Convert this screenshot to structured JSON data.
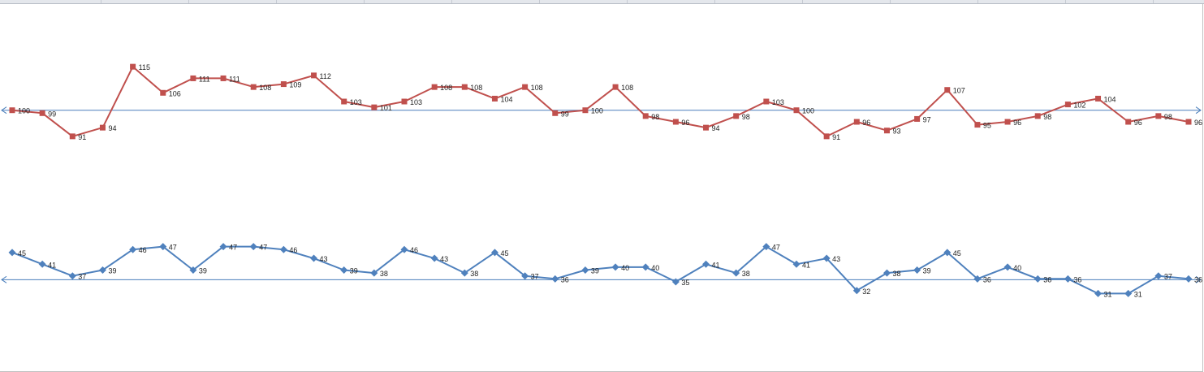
{
  "chart_data": {
    "type": "line",
    "title": "",
    "xlabel": "",
    "ylabel": "",
    "legend": "none",
    "grid": false,
    "axis_color": "#4a7ebb",
    "x": [
      1,
      2,
      3,
      4,
      5,
      6,
      7,
      8,
      9,
      10,
      11,
      12,
      13,
      14,
      15,
      16,
      17,
      18,
      19,
      20,
      21,
      22,
      23,
      24,
      25,
      26,
      27,
      28,
      29,
      30,
      31,
      32,
      33,
      34,
      35,
      36,
      37,
      38,
      39,
      40
    ],
    "series": [
      {
        "color": "#c0504d",
        "marker": "square",
        "labels": [
          "100",
          "99",
          "91",
          "94",
          "115",
          "106",
          "111",
          "111",
          "108",
          "109",
          "112",
          "103",
          "101",
          "103",
          "108",
          "108",
          "104",
          "108",
          "99",
          "100",
          "108",
          "98",
          "96",
          "94",
          "98",
          "103",
          "100",
          "91",
          "96",
          "93",
          "97",
          "107",
          "95",
          "96",
          "98",
          "102",
          "104",
          "96",
          "98",
          "96"
        ],
        "values": [
          100,
          99,
          91,
          94,
          115,
          106,
          111,
          111,
          108,
          109,
          112,
          103,
          101,
          103,
          108,
          108,
          104,
          108,
          99,
          100,
          108,
          98,
          96,
          94,
          98,
          103,
          100,
          91,
          96,
          93,
          97,
          107,
          95,
          96,
          98,
          102,
          104,
          96,
          98,
          96
        ]
      },
      {
        "color": "#4f81bd",
        "marker": "diamond",
        "labels": [
          "45",
          "41",
          "37",
          "39",
          "46",
          "47",
          "39",
          "47",
          "47",
          "46",
          "43",
          "39",
          "38",
          "46",
          "43",
          "38",
          "45",
          "37",
          "36",
          "39",
          "40",
          "40",
          "35",
          "41",
          "38",
          "47",
          "41",
          "43",
          "32",
          "38",
          "39",
          "45",
          "36",
          "40",
          "36",
          "36",
          "31",
          "31",
          "37",
          "36"
        ],
        "values": [
          45,
          41,
          37,
          39,
          46,
          47,
          39,
          47,
          47,
          46,
          43,
          39,
          38,
          46,
          43,
          38,
          45,
          37,
          36,
          39,
          40,
          40,
          35,
          41,
          38,
          47,
          41,
          43,
          32,
          38,
          39,
          45,
          36,
          40,
          36,
          36,
          31,
          31,
          37,
          36
        ]
      }
    ]
  }
}
